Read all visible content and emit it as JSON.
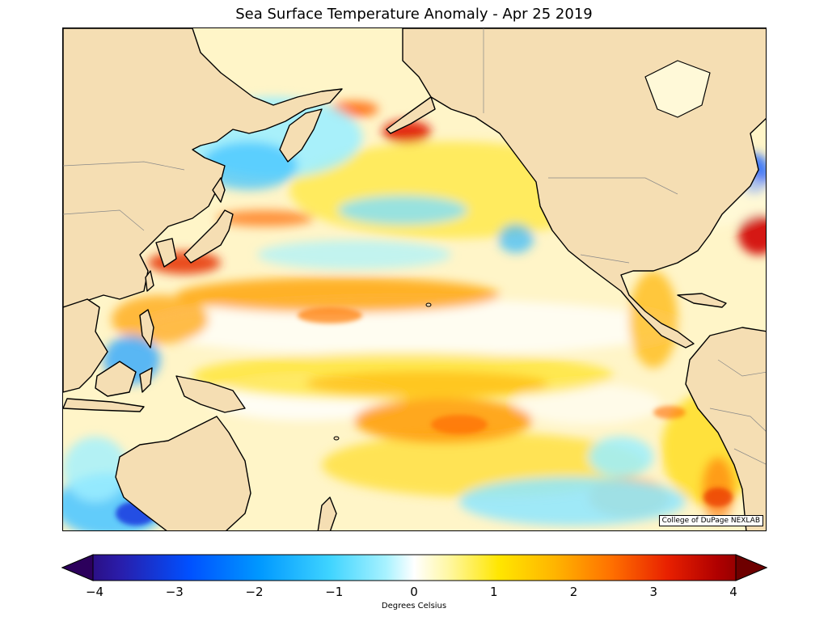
{
  "title": "Sea Surface Temperature Anomaly - Apr 25 2019",
  "credit": "College of DuPage NEXLAB",
  "colorbar": {
    "label": "Degrees Celsius",
    "min": -4,
    "max": 4,
    "ticks": [
      "−4",
      "−3",
      "−2",
      "−1",
      "0",
      "1",
      "2",
      "3",
      "4"
    ],
    "tick_values": [
      -4,
      -3,
      -2,
      -1,
      0,
      1,
      2,
      3,
      4
    ],
    "colors": [
      "#2c005c",
      "#2a1ca8",
      "#0050ff",
      "#0098ff",
      "#3fd4ff",
      "#a8f2ff",
      "#ffffff",
      "#fff7a0",
      "#ffe600",
      "#ffb400",
      "#ff7000",
      "#e82000",
      "#b00000",
      "#6e0000"
    ]
  },
  "map": {
    "region": "North Pacific Ocean",
    "land_color": "#f5deb3",
    "ocean_base_color": "#fff5c8"
  }
}
